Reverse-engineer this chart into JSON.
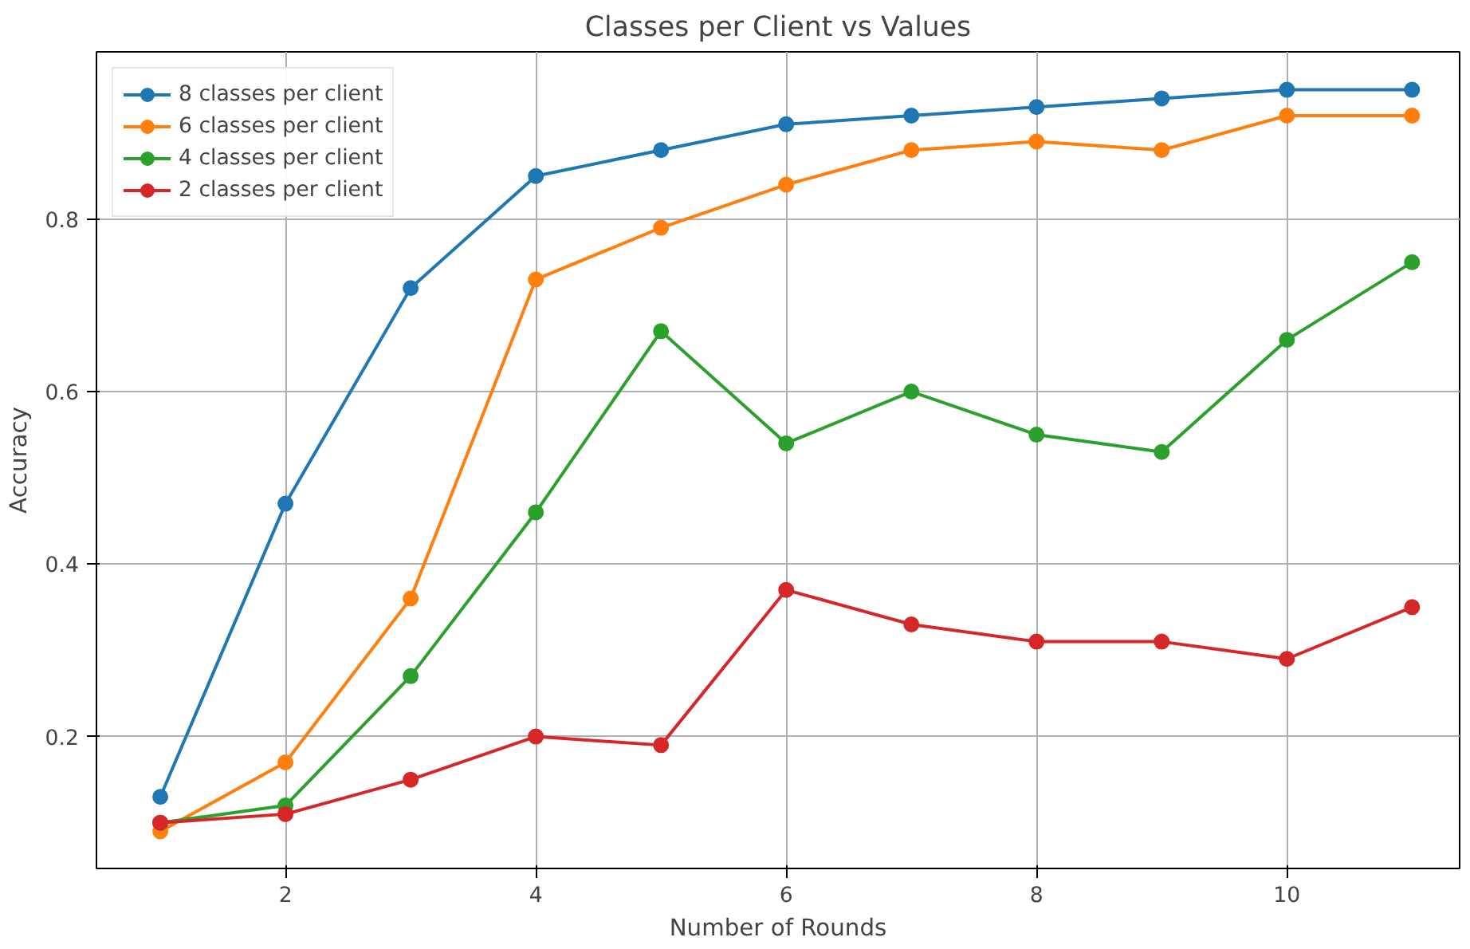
{
  "chart_data": {
    "type": "line",
    "title": "Classes per Client vs Values",
    "xlabel": "Number of Rounds",
    "ylabel": "Accuracy",
    "x": [
      1,
      2,
      3,
      4,
      5,
      6,
      7,
      8,
      9,
      10,
      11
    ],
    "series": [
      {
        "name": "8 classes per client",
        "color": "#1f77b4",
        "values": [
          0.13,
          0.47,
          0.72,
          0.85,
          0.88,
          0.91,
          0.92,
          0.93,
          0.94,
          0.95,
          0.95
        ]
      },
      {
        "name": "6 classes per client",
        "color": "#ff7f0e",
        "values": [
          0.09,
          0.17,
          0.36,
          0.73,
          0.79,
          0.84,
          0.88,
          0.89,
          0.88,
          0.92,
          0.92
        ]
      },
      {
        "name": "4 classes per client",
        "color": "#2ca02c",
        "values": [
          0.1,
          0.12,
          0.27,
          0.46,
          0.67,
          0.54,
          0.6,
          0.55,
          0.53,
          0.66,
          0.75
        ]
      },
      {
        "name": "2 classes per client",
        "color": "#d62728",
        "values": [
          0.1,
          0.11,
          0.15,
          0.2,
          0.19,
          0.37,
          0.33,
          0.31,
          0.31,
          0.29,
          0.35
        ]
      }
    ],
    "xlim": [
      0.49,
      11.38
    ],
    "ylim": [
      0.047,
      0.994
    ],
    "xticks": [
      2,
      4,
      6,
      8,
      10
    ],
    "yticks": [
      {
        "value": 0.2,
        "label": "0.2"
      },
      {
        "value": 0.4,
        "label": "0.4"
      },
      {
        "value": 0.6,
        "label": "0.6"
      },
      {
        "value": 0.8,
        "label": "0.8"
      }
    ],
    "grid": true,
    "legend": "top left",
    "marker": "circle",
    "line_style": "solid"
  }
}
